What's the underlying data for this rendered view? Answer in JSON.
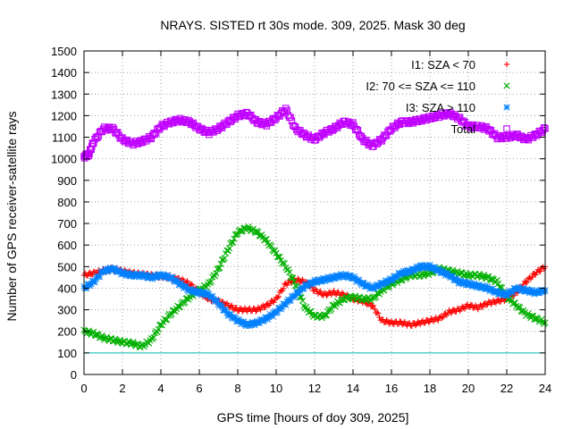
{
  "chart_data": {
    "type": "scatter",
    "title": "NRAYS. SISTED rt 30s mode. 309, 2025. Mask 30 deg",
    "xlabel": "GPS time [hours of doy 309, 2025]",
    "ylabel": "Number of GPS receiver-satellite rays",
    "xlim": [
      0,
      24
    ],
    "ylim": [
      0,
      1500
    ],
    "x_ticks": [
      0,
      2,
      4,
      6,
      8,
      10,
      12,
      14,
      16,
      18,
      20,
      22,
      24
    ],
    "y_ticks": [
      0,
      100,
      200,
      300,
      400,
      500,
      600,
      700,
      800,
      900,
      1000,
      1100,
      1200,
      1300,
      1400,
      1500
    ],
    "grid": true,
    "legend_position": "top-right",
    "threshold_line": {
      "y": 100,
      "color": "#00c0c0"
    },
    "series": [
      {
        "name": "I1: SZA < 70",
        "legend_label": "I1: SZA < 70",
        "marker": "+",
        "color": "#ff0000",
        "points": [
          [
            0,
            460
          ],
          [
            0.5,
            470
          ],
          [
            1,
            480
          ],
          [
            1.5,
            490
          ],
          [
            2,
            480
          ],
          [
            2.5,
            470
          ],
          [
            3,
            465
          ],
          [
            3.5,
            460
          ],
          [
            4,
            455
          ],
          [
            4.5,
            450
          ],
          [
            5,
            440
          ],
          [
            5.5,
            420
          ],
          [
            6,
            380
          ],
          [
            6.5,
            350
          ],
          [
            7,
            340
          ],
          [
            7.5,
            320
          ],
          [
            8,
            300
          ],
          [
            8.5,
            300
          ],
          [
            9,
            300
          ],
          [
            9.5,
            320
          ],
          [
            10,
            350
          ],
          [
            10.5,
            420
          ],
          [
            11,
            440
          ],
          [
            11.5,
            430
          ],
          [
            12,
            390
          ],
          [
            12.5,
            370
          ],
          [
            13,
            380
          ],
          [
            13.5,
            370
          ],
          [
            14,
            350
          ],
          [
            14.5,
            340
          ],
          [
            15,
            320
          ],
          [
            15.5,
            250
          ],
          [
            16,
            240
          ],
          [
            16.5,
            240
          ],
          [
            17,
            230
          ],
          [
            17.5,
            240
          ],
          [
            18,
            250
          ],
          [
            18.5,
            260
          ],
          [
            19,
            290
          ],
          [
            19.5,
            300
          ],
          [
            20,
            320
          ],
          [
            20.5,
            310
          ],
          [
            21,
            330
          ],
          [
            21.5,
            340
          ],
          [
            22,
            350
          ],
          [
            22.5,
            380
          ],
          [
            23,
            430
          ],
          [
            23.5,
            470
          ],
          [
            24,
            500
          ]
        ]
      },
      {
        "name": "I2: 70 <= SZA <= 110",
        "legend_label": "I2: 70 <= SZA <= 110",
        "marker": "x",
        "color": "#00b000",
        "points": [
          [
            0,
            200
          ],
          [
            0.5,
            190
          ],
          [
            1,
            170
          ],
          [
            1.5,
            160
          ],
          [
            2,
            150
          ],
          [
            2.5,
            145
          ],
          [
            3,
            130
          ],
          [
            3.5,
            160
          ],
          [
            4,
            230
          ],
          [
            4.5,
            280
          ],
          [
            5,
            320
          ],
          [
            5.5,
            360
          ],
          [
            6,
            390
          ],
          [
            6.5,
            420
          ],
          [
            7,
            490
          ],
          [
            7.5,
            580
          ],
          [
            8,
            660
          ],
          [
            8.5,
            680
          ],
          [
            9,
            660
          ],
          [
            9.5,
            620
          ],
          [
            10,
            560
          ],
          [
            10.5,
            500
          ],
          [
            11,
            420
          ],
          [
            11.5,
            310
          ],
          [
            12,
            270
          ],
          [
            12.5,
            270
          ],
          [
            13,
            320
          ],
          [
            13.5,
            350
          ],
          [
            14,
            360
          ],
          [
            14.5,
            350
          ],
          [
            15,
            350
          ],
          [
            15.5,
            390
          ],
          [
            16,
            420
          ],
          [
            16.5,
            440
          ],
          [
            17,
            460
          ],
          [
            17.5,
            460
          ],
          [
            18,
            470
          ],
          [
            18.5,
            490
          ],
          [
            19,
            480
          ],
          [
            19.5,
            470
          ],
          [
            20,
            460
          ],
          [
            20.5,
            460
          ],
          [
            21,
            450
          ],
          [
            21.5,
            430
          ],
          [
            22,
            360
          ],
          [
            22.5,
            320
          ],
          [
            23,
            280
          ],
          [
            23.5,
            260
          ],
          [
            24,
            240
          ]
        ]
      },
      {
        "name": "I3: SZA > 110",
        "legend_label": "I3: SZA > 110",
        "marker": "*",
        "color": "#0080ff",
        "points": [
          [
            0,
            400
          ],
          [
            0.5,
            430
          ],
          [
            1,
            480
          ],
          [
            1.5,
            490
          ],
          [
            2,
            470
          ],
          [
            2.5,
            460
          ],
          [
            3,
            460
          ],
          [
            3.5,
            450
          ],
          [
            4,
            460
          ],
          [
            4.5,
            450
          ],
          [
            5,
            420
          ],
          [
            5.5,
            390
          ],
          [
            6,
            380
          ],
          [
            6.5,
            370
          ],
          [
            7,
            330
          ],
          [
            7.5,
            280
          ],
          [
            8,
            250
          ],
          [
            8.5,
            230
          ],
          [
            9,
            240
          ],
          [
            9.5,
            260
          ],
          [
            10,
            290
          ],
          [
            10.5,
            330
          ],
          [
            11,
            370
          ],
          [
            11.5,
            410
          ],
          [
            12,
            430
          ],
          [
            12.5,
            440
          ],
          [
            13,
            450
          ],
          [
            13.5,
            460
          ],
          [
            14,
            450
          ],
          [
            14.5,
            420
          ],
          [
            15,
            400
          ],
          [
            15.5,
            420
          ],
          [
            16,
            440
          ],
          [
            16.5,
            470
          ],
          [
            17,
            480
          ],
          [
            17.5,
            500
          ],
          [
            18,
            500
          ],
          [
            18.5,
            480
          ],
          [
            19,
            460
          ],
          [
            19.5,
            430
          ],
          [
            20,
            420
          ],
          [
            20.5,
            410
          ],
          [
            21,
            400
          ],
          [
            21.5,
            380
          ],
          [
            22,
            370
          ],
          [
            22.5,
            400
          ],
          [
            23,
            390
          ],
          [
            23.5,
            380
          ],
          [
            24,
            390
          ]
        ]
      },
      {
        "name": "Total",
        "legend_label": "Total",
        "marker": "square",
        "color": "#c000ff",
        "points": [
          [
            0,
            1010
          ],
          [
            0.25,
            1020
          ],
          [
            0.5,
            1080
          ],
          [
            1,
            1140
          ],
          [
            1.5,
            1140
          ],
          [
            2,
            1090
          ],
          [
            2.5,
            1070
          ],
          [
            3,
            1080
          ],
          [
            3.5,
            1100
          ],
          [
            4,
            1150
          ],
          [
            4.5,
            1170
          ],
          [
            5,
            1180
          ],
          [
            5.5,
            1170
          ],
          [
            6,
            1140
          ],
          [
            6.5,
            1120
          ],
          [
            7,
            1140
          ],
          [
            7.5,
            1170
          ],
          [
            8,
            1200
          ],
          [
            8.5,
            1210
          ],
          [
            9,
            1170
          ],
          [
            9.5,
            1160
          ],
          [
            10,
            1190
          ],
          [
            10.5,
            1230
          ],
          [
            11,
            1140
          ],
          [
            11.5,
            1110
          ],
          [
            12,
            1090
          ],
          [
            12.5,
            1120
          ],
          [
            13,
            1140
          ],
          [
            13.5,
            1170
          ],
          [
            14,
            1160
          ],
          [
            14.5,
            1090
          ],
          [
            15,
            1060
          ],
          [
            15.5,
            1090
          ],
          [
            16,
            1140
          ],
          [
            16.5,
            1170
          ],
          [
            17,
            1170
          ],
          [
            17.5,
            1180
          ],
          [
            18,
            1190
          ],
          [
            18.5,
            1200
          ],
          [
            19,
            1210
          ],
          [
            19.5,
            1190
          ],
          [
            20,
            1150
          ],
          [
            20.5,
            1150
          ],
          [
            21,
            1140
          ],
          [
            21.5,
            1100
          ],
          [
            22,
            1100
          ],
          [
            22.5,
            1110
          ],
          [
            23,
            1090
          ],
          [
            23.5,
            1110
          ],
          [
            24,
            1140
          ]
        ]
      }
    ]
  }
}
